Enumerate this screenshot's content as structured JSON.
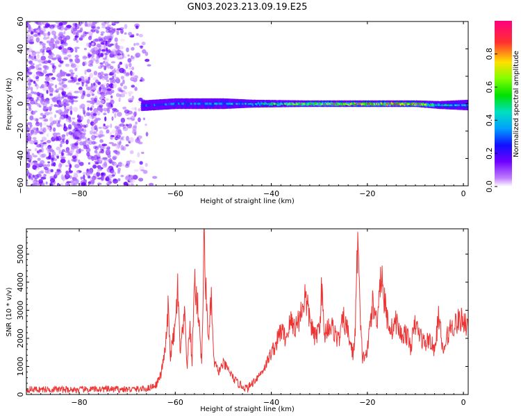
{
  "title": "GN03.2023.213.09.19.E25",
  "colorbar": {
    "label": "Normalized spectral amplitude",
    "ticks": [
      "0.0",
      "0.2",
      "0.4",
      "0.6",
      "0.8"
    ],
    "tick_values": [
      0.0,
      0.2,
      0.4,
      0.6,
      0.8
    ],
    "range": [
      0,
      1
    ]
  },
  "chart_data": [
    {
      "type": "heatmap",
      "xlabel": "Height of straight line (km)",
      "ylabel": "Frequency (Hz)",
      "xlim": [
        -91,
        1
      ],
      "ylim": [
        -60,
        60
      ],
      "xticks": [
        -80,
        -60,
        -40,
        -20,
        0
      ],
      "yticks": [
        -60,
        -40,
        -20,
        0,
        20,
        40,
        60
      ],
      "colormap": [
        "#e8c8ff",
        "#b070ff",
        "#6a00ff",
        "#2020ff",
        "#00a0ff",
        "#00e0c0",
        "#00e000",
        "#c0ff00",
        "#ffe000",
        "#ff4040",
        "#ff0080"
      ],
      "noise_region": {
        "x_range": [
          -91,
          -64
        ],
        "freq_range": [
          -60,
          60
        ],
        "amplitude": 0.1
      },
      "signal_band": [
        {
          "x": -67,
          "center_hz": -1.5,
          "halfwidth_hz": 3,
          "amplitude": 0.3
        },
        {
          "x": -60,
          "center_hz": 0,
          "halfwidth_hz": 3,
          "amplitude": 0.35
        },
        {
          "x": -50,
          "center_hz": 0,
          "halfwidth_hz": 3,
          "amplitude": 0.4
        },
        {
          "x": -44,
          "center_hz": 0,
          "halfwidth_hz": 2,
          "amplitude": 0.45
        },
        {
          "x": -33,
          "center_hz": 0,
          "halfwidth_hz": 1.5,
          "amplitude": 0.8
        },
        {
          "x": -22,
          "center_hz": 0,
          "halfwidth_hz": 1.5,
          "amplitude": 0.85
        },
        {
          "x": -10,
          "center_hz": 0,
          "halfwidth_hz": 1.5,
          "amplitude": 0.9
        },
        {
          "x": -5,
          "center_hz": -1,
          "halfwidth_hz": 2,
          "amplitude": 0.5
        },
        {
          "x": 1,
          "center_hz": -1,
          "halfwidth_hz": 3,
          "amplitude": 0.4
        }
      ]
    },
    {
      "type": "line",
      "xlabel": "Height of straight line (km)",
      "ylabel": "SNR (10 * v/v)",
      "xlim": [
        -91,
        1
      ],
      "ylim": [
        0,
        5900
      ],
      "xticks": [
        -80,
        -60,
        -40,
        -20,
        0
      ],
      "yticks": [
        0,
        1000,
        2000,
        3000,
        4000,
        5000
      ],
      "color": "#ee3333",
      "series": [
        {
          "x": [
            -91,
            -85,
            -80,
            -75,
            -70,
            -66,
            -64,
            -63,
            -62,
            -61.5,
            -61,
            -60,
            -59.5,
            -59,
            -58,
            -57.5,
            -57,
            -56.5,
            -56,
            -55,
            -54.5,
            -54,
            -53.5,
            -53,
            -52.5,
            -52,
            -51,
            -50,
            -49,
            -48,
            -47,
            -46,
            -45,
            -44,
            -43,
            -42,
            -41,
            -40,
            -39,
            -38,
            -37,
            -36,
            -35,
            -34,
            -33,
            -32.5,
            -32,
            -31,
            -30,
            -29.5,
            -29,
            -28,
            -27,
            -26,
            -25,
            -24,
            -23,
            -22.5,
            -22,
            -21.5,
            -21,
            -20,
            -19.5,
            -19,
            -18,
            -17.5,
            -17,
            -16.5,
            -16,
            -15,
            -14,
            -13,
            -12,
            -11,
            -10,
            -9,
            -8,
            -7,
            -6,
            -5.5,
            -5,
            -4.5,
            -4,
            -3,
            -2,
            -1,
            0,
            1
          ],
          "values": [
            180,
            180,
            170,
            190,
            180,
            200,
            350,
            700,
            1700,
            3000,
            1400,
            2400,
            3800,
            1500,
            2800,
            900,
            2500,
            1200,
            4100,
            2600,
            1000,
            5500,
            3200,
            1900,
            3500,
            1200,
            800,
            1100,
            900,
            600,
            400,
            300,
            200,
            400,
            600,
            800,
            1100,
            1500,
            1800,
            2300,
            2000,
            2600,
            2400,
            2800,
            3500,
            3100,
            2700,
            2000,
            2400,
            3800,
            2100,
            2500,
            2300,
            1900,
            2700,
            2200,
            1400,
            2300,
            5800,
            2600,
            1300,
            1500,
            2400,
            3200,
            2600,
            3900,
            4300,
            3400,
            2800,
            2300,
            2600,
            2100,
            2200,
            1700,
            2500,
            2100,
            1800,
            2000,
            1500,
            2300,
            2900,
            1600,
            1600,
            2300,
            2500,
            2600,
            2700,
            2400
          ]
        }
      ]
    }
  ]
}
